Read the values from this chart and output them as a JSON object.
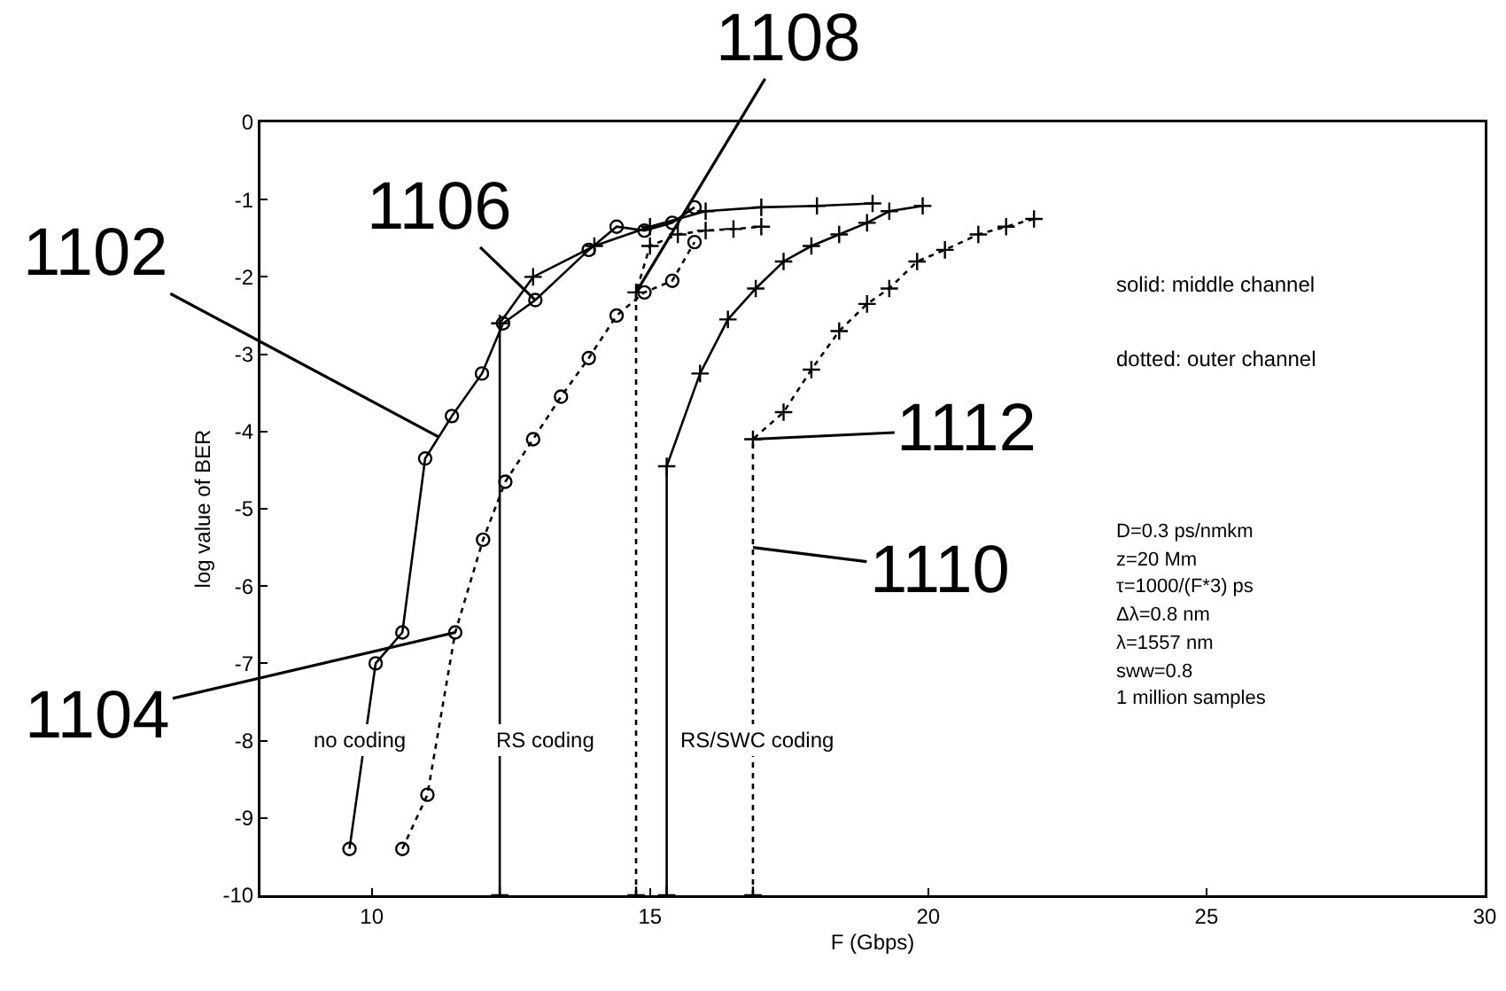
{
  "chart_data": {
    "type": "line",
    "xlabel": "F (Gbps)",
    "ylabel": "log value of BER",
    "xlim": [
      8,
      30
    ],
    "xticks": [
      10,
      15,
      20,
      25,
      30
    ],
    "ylim": [
      -10,
      0
    ],
    "yticks": [
      0,
      -1,
      -2,
      -3,
      -4,
      -5,
      -6,
      -7,
      -8,
      -9,
      -10
    ],
    "grid": false,
    "series": [
      {
        "color": "#000000",
        "marker": "circle",
        "line_style": "solid",
        "x": [
          9.6,
          10.07,
          10.55,
          10.96,
          11.44,
          11.98,
          12.36,
          12.94,
          13.9,
          14.4,
          14.9,
          15.4,
          15.8
        ],
        "values": [
          -9.4,
          -7.0,
          -6.6,
          -4.35,
          -3.8,
          -3.25,
          -2.6,
          -2.3,
          -1.65,
          -1.35,
          -1.4,
          -1.3,
          -1.1
        ]
      },
      {
        "color": "#000000",
        "marker": "circle",
        "line_style": "dotted",
        "x": [
          10.55,
          11.0,
          11.5,
          12.0,
          12.4,
          12.9,
          13.4,
          13.9,
          14.4,
          14.9,
          15.4,
          15.8
        ],
        "values": [
          -9.4,
          -8.7,
          -6.6,
          -5.4,
          -4.65,
          -4.1,
          -3.55,
          -3.05,
          -2.5,
          -2.2,
          -2.05,
          -1.55
        ]
      },
      {
        "color": "#000000",
        "marker": "cross",
        "line_style": "solid",
        "x": [
          12.3,
          12.3,
          12.9,
          14.0,
          15.0,
          16.0,
          17.0,
          18.0,
          19.0
        ],
        "values": [
          -10,
          -2.6,
          -2.0,
          -1.6,
          -1.35,
          -1.15,
          -1.1,
          -1.08,
          -1.05
        ]
      },
      {
        "color": "#000000",
        "marker": "cross",
        "line_style": "dotted",
        "x": [
          14.75,
          14.75,
          15.0,
          15.5,
          16.0,
          16.5,
          17.0
        ],
        "values": [
          -10,
          -2.2,
          -1.6,
          -1.45,
          -1.4,
          -1.38,
          -1.35
        ]
      },
      {
        "color": "#000000",
        "marker": "cross",
        "line_style": "solid",
        "x": [
          15.3,
          15.3,
          15.9,
          16.4,
          16.9,
          17.4,
          17.9,
          18.4,
          18.9,
          19.3,
          19.9
        ],
        "values": [
          -10,
          -4.45,
          -3.25,
          -2.55,
          -2.15,
          -1.8,
          -1.6,
          -1.45,
          -1.3,
          -1.15,
          -1.08
        ]
      },
      {
        "color": "#000000",
        "marker": "cross",
        "line_style": "dotted",
        "x": [
          16.85,
          16.85,
          17.4,
          17.9,
          18.4,
          18.9,
          19.3,
          19.8,
          20.3,
          20.9,
          21.4,
          21.9
        ],
        "values": [
          -10,
          -4.1,
          -3.75,
          -3.2,
          -2.7,
          -2.35,
          -2.15,
          -1.8,
          -1.65,
          -1.45,
          -1.35,
          -1.25
        ]
      }
    ],
    "annotations": [
      {
        "text": "1102",
        "x": 11.2,
        "y": -4.07
      },
      {
        "text": "1104",
        "x": 11.5,
        "y": -6.6
      },
      {
        "text": "1106",
        "x": 12.94,
        "y": -2.3
      },
      {
        "text": "1108",
        "x": 14.75,
        "y": -2.2
      },
      {
        "text": "1110",
        "x": 16.85,
        "y": -5.5
      },
      {
        "text": "1112",
        "x": 16.85,
        "y": -4.1
      },
      "no coding",
      "RS coding",
      "RS/SWC coding",
      "solid: middle channel",
      "dotted: outer channel",
      "D=0.3 ps/nmkm",
      "z=20 Mm",
      "τ=1000/(F*3) ps",
      "Δλ=0.8 nm",
      "λ=1557 nm",
      "sww=0.8",
      "1 million samples"
    ]
  }
}
